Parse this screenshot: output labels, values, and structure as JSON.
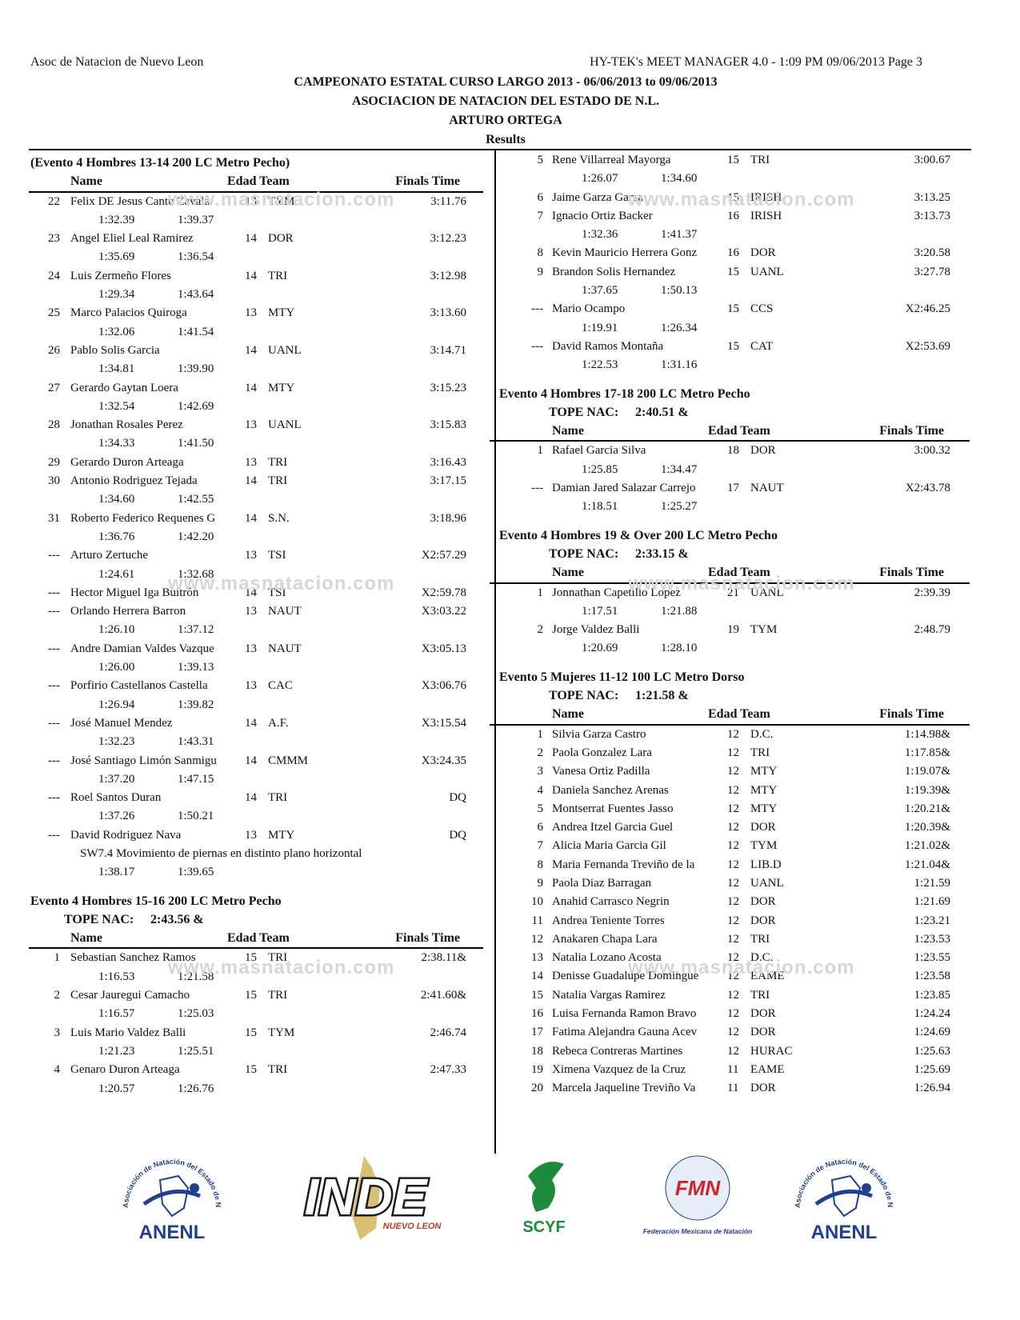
{
  "header": {
    "org": "Asoc de Natacion de Nuevo Leon",
    "software": "HY-TEK's MEET MANAGER 4.0 - 1:09 PM  09/06/2013  Page 3",
    "title1": "CAMPEONATO ESTATAL CURSO LARGO 2013 - 06/06/2013 to 09/06/2013",
    "title2": "ASOCIACION DE NATACION DEL ESTADO DE N.L.",
    "title3": "ARTURO ORTEGA",
    "results": "Results"
  },
  "columns": {
    "name": "Name",
    "edad_team": "Edad Team",
    "finals": "Finals Time",
    "tope_label": "TOPE NAC:"
  },
  "watermark": "www.masnatacion.com",
  "left": [
    {
      "title": "(Evento 4  Hombres 13-14 200 LC Metro Pecho)",
      "entries": [
        {
          "place": "22",
          "name": "Felix DE Jesus Cantu Zavala",
          "age": "13",
          "team": "TYM",
          "time": "3:11.76",
          "splits": [
            "1:32.39",
            "1:39.37"
          ]
        },
        {
          "place": "23",
          "name": "Angel Eliel Leal Ramirez",
          "age": "14",
          "team": "DOR",
          "time": "3:12.23",
          "splits": [
            "1:35.69",
            "1:36.54"
          ]
        },
        {
          "place": "24",
          "name": "Luis Zermeño Flores",
          "age": "14",
          "team": "TRI",
          "time": "3:12.98",
          "splits": [
            "1:29.34",
            "1:43.64"
          ]
        },
        {
          "place": "25",
          "name": "Marco Palacios Quiroga",
          "age": "13",
          "team": "MTY",
          "time": "3:13.60",
          "splits": [
            "1:32.06",
            "1:41.54"
          ]
        },
        {
          "place": "26",
          "name": "Pablo Solis Garcia",
          "age": "14",
          "team": "UANL",
          "time": "3:14.71",
          "splits": [
            "1:34.81",
            "1:39.90"
          ]
        },
        {
          "place": "27",
          "name": "Gerardo Gaytan Loera",
          "age": "14",
          "team": "MTY",
          "time": "3:15.23",
          "splits": [
            "1:32.54",
            "1:42.69"
          ]
        },
        {
          "place": "28",
          "name": "Jonathan Rosales Perez",
          "age": "13",
          "team": "UANL",
          "time": "3:15.83",
          "splits": [
            "1:34.33",
            "1:41.50"
          ]
        },
        {
          "place": "29",
          "name": "Gerardo Duron Arteaga",
          "age": "13",
          "team": "TRI",
          "time": "3:16.43"
        },
        {
          "place": "30",
          "name": "Antonio Rodriguez Tejada",
          "age": "14",
          "team": "TRI",
          "time": "3:17.15",
          "splits": [
            "1:34.60",
            "1:42.55"
          ]
        },
        {
          "place": "31",
          "name": "Roberto Federico Requenes G",
          "age": "14",
          "team": "S.N.",
          "time": "3:18.96",
          "splits": [
            "1:36.76",
            "1:42.20"
          ]
        },
        {
          "place": "---",
          "name": "Arturo Zertuche",
          "age": "13",
          "team": "TSI",
          "time": "X2:57.29",
          "splits": [
            "1:24.61",
            "1:32.68"
          ]
        },
        {
          "place": "---",
          "name": "Hector Miguel Iga Buitrón",
          "age": "14",
          "team": "TSI",
          "time": "X2:59.78"
        },
        {
          "place": "---",
          "name": "Orlando Herrera Barron",
          "age": "13",
          "team": "NAUT",
          "time": "X3:03.22",
          "splits": [
            "1:26.10",
            "1:37.12"
          ]
        },
        {
          "place": "---",
          "name": "Andre Damian Valdes Vazque",
          "age": "13",
          "team": "NAUT",
          "time": "X3:05.13",
          "splits": [
            "1:26.00",
            "1:39.13"
          ]
        },
        {
          "place": "---",
          "name": "Porfirio Castellanos Castella",
          "age": "13",
          "team": "CAC",
          "time": "X3:06.76",
          "splits": [
            "1:26.94",
            "1:39.82"
          ]
        },
        {
          "place": "---",
          "name": "José Manuel Mendez",
          "age": "14",
          "team": "A.F.",
          "time": "X3:15.54",
          "splits": [
            "1:32.23",
            "1:43.31"
          ]
        },
        {
          "place": "---",
          "name": "José Santiago Limón Sanmigu",
          "age": "14",
          "team": "CMMM",
          "time": "X3:24.35",
          "splits": [
            "1:37.20",
            "1:47.15"
          ]
        },
        {
          "place": "---",
          "name": "Roel Santos Duran",
          "age": "14",
          "team": "TRI",
          "time": "DQ",
          "splits": [
            "1:37.26",
            "1:50.21"
          ]
        },
        {
          "place": "---",
          "name": "David Rodriguez Nava",
          "age": "13",
          "team": "MTY",
          "time": "DQ",
          "note": "SW7.4 Movimiento de piernas en distinto plano horizontal",
          "splits": [
            "1:38.17",
            "1:39.65"
          ]
        }
      ]
    },
    {
      "title": "Evento 4  Hombres 15-16 200 LC Metro Pecho",
      "tope": "2:43.56  &",
      "header": true,
      "entries": [
        {
          "place": "1",
          "name": "Sebastian Sanchez Ramos",
          "age": "15",
          "team": "TRI",
          "time": "2:38.11&",
          "splits": [
            "1:16.53",
            "1:21.58"
          ]
        },
        {
          "place": "2",
          "name": "Cesar Jauregui Camacho",
          "age": "15",
          "team": "TRI",
          "time": "2:41.60&",
          "splits": [
            "1:16.57",
            "1:25.03"
          ]
        },
        {
          "place": "3",
          "name": "Luis Mario Valdez Balli",
          "age": "15",
          "team": "TYM",
          "time": "2:46.74",
          "splits": [
            "1:21.23",
            "1:25.51"
          ]
        },
        {
          "place": "4",
          "name": "Genaro Duron Arteaga",
          "age": "15",
          "team": "TRI",
          "time": "2:47.33",
          "splits": [
            "1:20.57",
            "1:26.76"
          ]
        }
      ]
    }
  ],
  "right": [
    {
      "entries": [
        {
          "place": "5",
          "name": "Rene Villarreal Mayorga",
          "age": "15",
          "team": "TRI",
          "time": "3:00.67",
          "splits": [
            "1:26.07",
            "1:34.60"
          ]
        },
        {
          "place": "6",
          "name": "Jaime Garza Garza",
          "age": "15",
          "team": "IRISH",
          "time": "3:13.25"
        },
        {
          "place": "7",
          "name": "Ignacio Ortiz Backer",
          "age": "16",
          "team": "IRISH",
          "time": "3:13.73",
          "splits": [
            "1:32.36",
            "1:41.37"
          ]
        },
        {
          "place": "8",
          "name": "Kevin Mauricio Herrera Gonz",
          "age": "16",
          "team": "DOR",
          "time": "3:20.58"
        },
        {
          "place": "9",
          "name": "Brandon Solis Hernandez",
          "age": "15",
          "team": "UANL",
          "time": "3:27.78",
          "splits": [
            "1:37.65",
            "1:50.13"
          ]
        },
        {
          "place": "---",
          "name": "Mario Ocampo",
          "age": "15",
          "team": "CCS",
          "time": "X2:46.25",
          "splits": [
            "1:19.91",
            "1:26.34"
          ]
        },
        {
          "place": "---",
          "name": "David Ramos Montaña",
          "age": "15",
          "team": "CAT",
          "time": "X2:53.69",
          "splits": [
            "1:22.53",
            "1:31.16"
          ]
        }
      ]
    },
    {
      "title": "Evento 4  Hombres 17-18 200 LC Metro Pecho",
      "tope": "2:40.51  &",
      "header": true,
      "entries": [
        {
          "place": "1",
          "name": "Rafael Garcia Silva",
          "age": "18",
          "team": "DOR",
          "time": "3:00.32",
          "splits": [
            "1:25.85",
            "1:34.47"
          ]
        },
        {
          "place": "---",
          "name": "Damian Jared Salazar Carrejo",
          "age": "17",
          "team": "NAUT",
          "time": "X2:43.78",
          "splits": [
            "1:18.51",
            "1:25.27"
          ]
        }
      ]
    },
    {
      "title": "Evento 4  Hombres 19 & Over 200 LC Metro Pecho",
      "tope": "2:33.15  &",
      "header": true,
      "entries": [
        {
          "place": "1",
          "name": "Jonnathan Capetillo Lopez",
          "age": "21",
          "team": "UANL",
          "time": "2:39.39",
          "splits": [
            "1:17.51",
            "1:21.88"
          ]
        },
        {
          "place": "2",
          "name": "Jorge Valdez Balli",
          "age": "19",
          "team": "TYM",
          "time": "2:48.79",
          "splits": [
            "1:20.69",
            "1:28.10"
          ]
        }
      ]
    },
    {
      "title": "Evento 5  Mujeres 11-12 100 LC Metro Dorso",
      "tope": "1:21.58  &",
      "header": true,
      "entries": [
        {
          "place": "1",
          "name": "Silvia Garza Castro",
          "age": "12",
          "team": "D.C.",
          "time": "1:14.98&"
        },
        {
          "place": "2",
          "name": "Paola Gonzalez Lara",
          "age": "12",
          "team": "TRI",
          "time": "1:17.85&"
        },
        {
          "place": "3",
          "name": "Vanesa Ortiz Padilla",
          "age": "12",
          "team": "MTY",
          "time": "1:19.07&"
        },
        {
          "place": "4",
          "name": "Daniela Sanchez Arenas",
          "age": "12",
          "team": "MTY",
          "time": "1:19.39&"
        },
        {
          "place": "5",
          "name": "Montserrat Fuentes Jasso",
          "age": "12",
          "team": "MTY",
          "time": "1:20.21&"
        },
        {
          "place": "6",
          "name": "Andrea Itzel Garcia Guel",
          "age": "12",
          "team": "DOR",
          "time": "1:20.39&"
        },
        {
          "place": "7",
          "name": "Alicia Maria Garcia Gil",
          "age": "12",
          "team": "TYM",
          "time": "1:21.02&"
        },
        {
          "place": "8",
          "name": "Maria Fernanda Treviño de la",
          "age": "12",
          "team": "LIB.D",
          "time": "1:21.04&"
        },
        {
          "place": "9",
          "name": "Paola Diaz Barragan",
          "age": "12",
          "team": "UANL",
          "time": "1:21.59"
        },
        {
          "place": "10",
          "name": "Anahid Carrasco  Negrin",
          "age": "12",
          "team": "DOR",
          "time": "1:21.69"
        },
        {
          "place": "11",
          "name": "Andrea Teniente Torres",
          "age": "12",
          "team": "DOR",
          "time": "1:23.21"
        },
        {
          "place": "12",
          "name": "Anakaren Chapa Lara",
          "age": "12",
          "team": "TRI",
          "time": "1:23.53"
        },
        {
          "place": "13",
          "name": "Natalia Lozano Acosta",
          "age": "12",
          "team": "D.C.",
          "time": "1:23.55"
        },
        {
          "place": "14",
          "name": "Denisse Guadalupe Domingue",
          "age": "12",
          "team": "EAME",
          "time": "1:23.58"
        },
        {
          "place": "15",
          "name": "Natalia Vargas Ramirez",
          "age": "12",
          "team": "TRI",
          "time": "1:23.85"
        },
        {
          "place": "16",
          "name": "Luisa Fernanda Ramon Bravo",
          "age": "12",
          "team": "DOR",
          "time": "1:24.24"
        },
        {
          "place": "17",
          "name": "Fatima Alejandra Gauna Acev",
          "age": "12",
          "team": "DOR",
          "time": "1:24.69"
        },
        {
          "place": "18",
          "name": "Rebeca Contreras Martines",
          "age": "12",
          "team": "HURAC",
          "time": "1:25.63"
        },
        {
          "place": "19",
          "name": "Ximena Vazquez de la Cruz",
          "age": "11",
          "team": "EAME",
          "time": "1:25.69"
        },
        {
          "place": "20",
          "name": "Marcela Jaqueline Treviño Va",
          "age": "11",
          "team": "DOR",
          "time": "1:26.94"
        }
      ]
    }
  ],
  "logos": [
    {
      "name": "anenl",
      "text": "ANENL",
      "arc": "Asociación de Natación del Estado de Nuevo León",
      "color": "#1f3f8f"
    },
    {
      "name": "inde",
      "text": "INDE",
      "sub": "NUEVO LEON",
      "color": "#1a1a1a",
      "accent": "#c9a23a"
    },
    {
      "name": "scyf",
      "text": "SCYF",
      "color": "#1e8a3c"
    },
    {
      "name": "fmn",
      "text": "FMN",
      "sub": "Federación Mexicana de Natación",
      "color": "#1f3f8f",
      "accent": "#d2232a"
    },
    {
      "name": "anenl",
      "text": "ANENL",
      "arc": "Asociación de Natación del Estado de Nuevo León",
      "color": "#1f3f8f"
    }
  ]
}
